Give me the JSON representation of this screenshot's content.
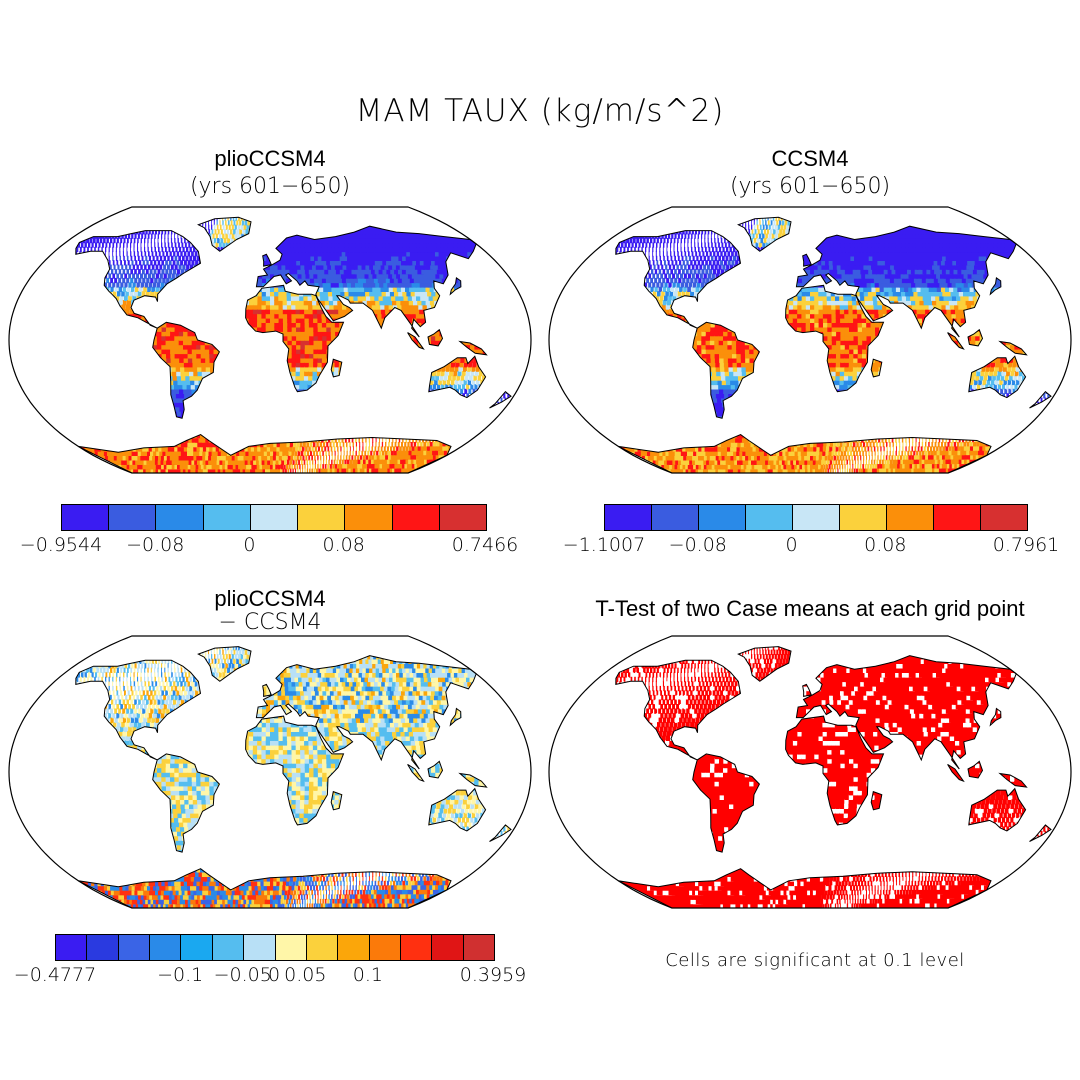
{
  "figure": {
    "title": "MAM TAUX (kg/m/s^2)"
  },
  "panels": [
    {
      "id": "plio",
      "title": "plioCCSM4",
      "subtitle": "(yrs 601−650)",
      "palette": [
        "#3a1cf2",
        "#3a5ce0",
        "#2a8ae8",
        "#55bdef",
        "#c8e6f6",
        "#fbd13c",
        "#fb8f0a",
        "#ff1515",
        "#d73030"
      ],
      "colorbar_labels": [
        "−0.9544",
        "−0.08",
        "0",
        "0.08",
        "0.7466"
      ]
    },
    {
      "id": "ccsm4",
      "title": "CCSM4",
      "subtitle": "(yrs 601−650)",
      "palette": [
        "#3a1cf2",
        "#3a5ce0",
        "#2a8ae8",
        "#55bdef",
        "#c8e6f6",
        "#fbd13c",
        "#fb8f0a",
        "#ff1515",
        "#d73030"
      ],
      "colorbar_labels": [
        "−1.1007",
        "−0.08",
        "0",
        "0.08",
        "0.7961"
      ]
    },
    {
      "id": "diff",
      "title": "plioCCSM4",
      "subtitle": "− CCSM4",
      "palette": [
        "#3a1cf2",
        "#2a3ae0",
        "#3a64e6",
        "#2a8ae8",
        "#1aa8f0",
        "#55bdef",
        "#b8e0f6",
        "#fff6a8",
        "#fbd13c",
        "#fba60a",
        "#fb7a0a",
        "#ff3010",
        "#e01515",
        "#d03030"
      ],
      "colorbar_labels": [
        "−0.4777",
        "−0.1",
        "−0.05",
        "0",
        "0.05",
        "0.1",
        "0.3959"
      ]
    },
    {
      "id": "ttest",
      "title": "T-Test of two Case means at each grid point",
      "subtitle": "",
      "note": "Cells are significant at 0.1 level"
    }
  ],
  "colors": {
    "significant": "#ff0000",
    "outline": "#000000",
    "background": "#ffffff"
  }
}
